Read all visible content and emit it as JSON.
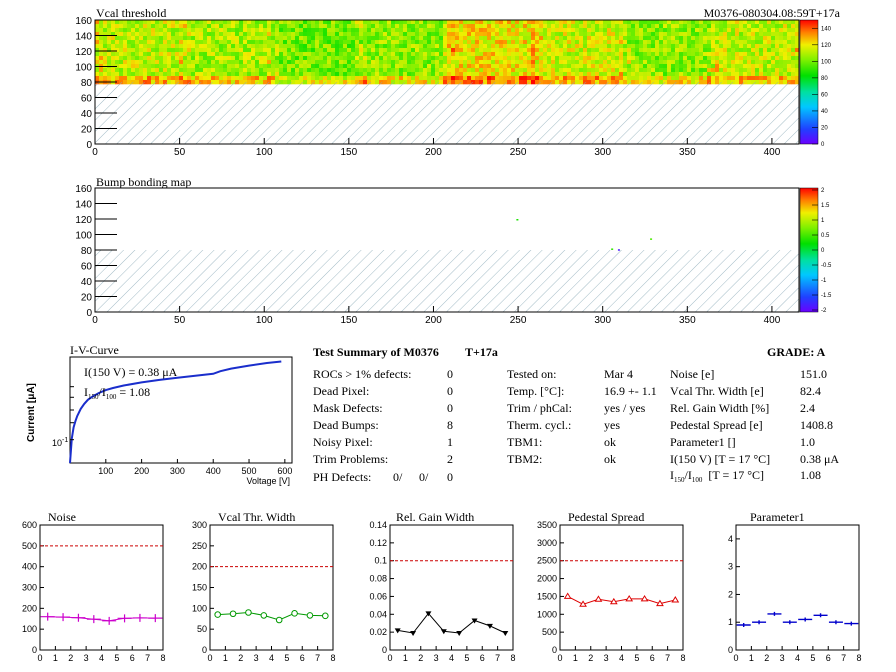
{
  "header": {
    "module_id": "M0376-080304.08:59T+17a"
  },
  "colors": {
    "accent_red": "#e8000a",
    "accent_blue": "#0000cc",
    "noise_series": "#cc00cc",
    "vcal_series": "#009900",
    "gain_series": "#000000",
    "pedestal_series": "#dd0000",
    "param1_series": "#0000cc",
    "limit_line": "#cc0000",
    "iv_curve": "#1a2ecc"
  },
  "chart_data": [
    {
      "id": "vcal_threshold",
      "type": "heatmap",
      "title": "Vcal threshold",
      "xlim": [
        0,
        416
      ],
      "ylim": [
        0,
        160
      ],
      "xticks": [
        0,
        50,
        100,
        150,
        200,
        250,
        300,
        350,
        400
      ],
      "yticks": [
        0,
        20,
        40,
        60,
        80,
        100,
        120,
        140,
        160
      ],
      "hatched_region": {
        "y": [
          0,
          80
        ]
      },
      "colorbar": {
        "ticks": [
          0,
          20,
          40,
          60,
          80,
          100,
          120,
          140
        ],
        "range": [
          0,
          150
        ]
      },
      "roc_columns": [
        {
          "x": [
            0,
            52
          ],
          "mean": 112
        },
        {
          "x": [
            52,
            104
          ],
          "mean": 108
        },
        {
          "x": [
            104,
            156
          ],
          "mean": 100
        },
        {
          "x": [
            156,
            208
          ],
          "mean": 104
        },
        {
          "x": [
            208,
            260
          ],
          "mean": 120
        },
        {
          "x": [
            260,
            312
          ],
          "mean": 114
        },
        {
          "x": [
            312,
            364
          ],
          "mean": 104
        },
        {
          "x": [
            364,
            416
          ],
          "mean": 112
        }
      ]
    },
    {
      "id": "bump_bonding",
      "type": "heatmap",
      "title": "Bump bonding map",
      "xlim": [
        0,
        416
      ],
      "ylim": [
        0,
        160
      ],
      "xticks": [
        0,
        50,
        100,
        150,
        200,
        250,
        300,
        350,
        400
      ],
      "yticks": [
        0,
        20,
        40,
        60,
        80,
        100,
        120,
        140,
        160
      ],
      "hatched_region": {
        "y": [
          0,
          80
        ]
      },
      "colorbar": {
        "ticks": [
          "2",
          "1.5",
          "1",
          "0.5",
          "0",
          "-0.5",
          "-1",
          "-1.5",
          "-2"
        ],
        "range": [
          -2,
          2
        ]
      },
      "points": [
        {
          "x": 249,
          "y": 120,
          "z": 0.3
        },
        {
          "x": 305,
          "y": 82,
          "z": 0.4
        },
        {
          "x": 309,
          "y": 81,
          "z": -1.8
        },
        {
          "x": 328,
          "y": 95,
          "z": 0.5
        }
      ]
    },
    {
      "id": "iv_curve",
      "type": "line",
      "title": "I-V-Curve",
      "xlabel": "Voltage [V]",
      "ylabel": "Current [μA]",
      "xlim": [
        0,
        620
      ],
      "xticks": [
        100,
        200,
        300,
        400,
        500,
        600
      ],
      "yscale": "log",
      "ytick_label": "10",
      "ytick_exp": "-1",
      "ann1": "I(150 V) = 0.38 μA",
      "ann2_a": "I",
      "ann2_b": "150",
      "ann2_c": "/I",
      "ann2_d": "100",
      "ann2_e": "= 1.08",
      "x": [
        0,
        5,
        10,
        15,
        20,
        30,
        40,
        50,
        60,
        80,
        100,
        120,
        150,
        200,
        250,
        300,
        350,
        400,
        420,
        450,
        500,
        550,
        590
      ],
      "y_norm": [
        0.0,
        0.24,
        0.35,
        0.41,
        0.46,
        0.53,
        0.58,
        0.62,
        0.645,
        0.685,
        0.715,
        0.735,
        0.76,
        0.79,
        0.815,
        0.835,
        0.855,
        0.875,
        0.9,
        0.925,
        0.955,
        0.98,
        0.995
      ]
    },
    {
      "id": "noise",
      "type": "line",
      "title": "Noise",
      "xlim": [
        0,
        8
      ],
      "ylim": [
        0,
        600
      ],
      "xticks": [
        0,
        1,
        2,
        3,
        4,
        5,
        6,
        7,
        8
      ],
      "yticks": [
        0,
        100,
        200,
        300,
        400,
        500,
        600
      ],
      "limit": 500,
      "x": [
        0.5,
        1.5,
        2.5,
        3.5,
        4.5,
        5.5,
        6.5,
        7.5
      ],
      "values": [
        160,
        158,
        155,
        148,
        140,
        152,
        154,
        153
      ]
    },
    {
      "id": "vcal_thr_width",
      "type": "line",
      "title": "Vcal Thr. Width",
      "xlim": [
        0,
        8
      ],
      "ylim": [
        0,
        300
      ],
      "xticks": [
        0,
        1,
        2,
        3,
        4,
        5,
        6,
        7,
        8
      ],
      "yticks": [
        0,
        50,
        100,
        150,
        200,
        250,
        300
      ],
      "limit": 200,
      "x": [
        0.5,
        1.5,
        2.5,
        3.5,
        4.5,
        5.5,
        6.5,
        7.5
      ],
      "values": [
        85,
        87,
        90,
        83,
        72,
        88,
        83,
        82
      ]
    },
    {
      "id": "rel_gain_width",
      "type": "line",
      "title": "Rel. Gain Width",
      "xlim": [
        0,
        8
      ],
      "ylim": [
        0,
        0.14
      ],
      "xticks": [
        0,
        1,
        2,
        3,
        4,
        5,
        6,
        7,
        8
      ],
      "yticks": [
        "0",
        "0.02",
        "0.04",
        "0.06",
        "0.08",
        "0.1",
        "0.12",
        "0.14"
      ],
      "limit": 0.1,
      "x": [
        0.5,
        1.5,
        2.5,
        3.5,
        4.5,
        5.5,
        6.5,
        7.5
      ],
      "values": [
        0.022,
        0.019,
        0.041,
        0.021,
        0.019,
        0.033,
        0.027,
        0.019
      ]
    },
    {
      "id": "pedestal_spread",
      "type": "line",
      "title": "Pedestal Spread",
      "xlim": [
        0,
        8
      ],
      "ylim": [
        0,
        3500
      ],
      "xticks": [
        0,
        1,
        2,
        3,
        4,
        5,
        6,
        7,
        8
      ],
      "yticks": [
        0,
        500,
        1000,
        1500,
        2000,
        2500,
        3000,
        3500
      ],
      "limit": 2500,
      "x": [
        0.5,
        1.5,
        2.5,
        3.5,
        4.5,
        5.5,
        6.5,
        7.5
      ],
      "values": [
        1500,
        1280,
        1420,
        1350,
        1430,
        1430,
        1300,
        1400
      ]
    },
    {
      "id": "parameter1",
      "type": "scatter",
      "title": "Parameter1",
      "xlim": [
        0,
        8
      ],
      "ylim": [
        0,
        4.5
      ],
      "xticks": [
        0,
        1,
        2,
        3,
        4,
        5,
        6,
        7,
        8
      ],
      "yticks": [
        0,
        1,
        2,
        3,
        4
      ],
      "x": [
        0.5,
        1.5,
        2.5,
        3.5,
        4.5,
        5.5,
        6.5,
        7.5
      ],
      "values": [
        0.9,
        1.0,
        1.3,
        1.0,
        1.1,
        1.25,
        1.0,
        0.95
      ]
    }
  ],
  "summary": {
    "title_a": "Test Summary of M0376",
    "title_b": "T+17a",
    "grade": "GRADE:  A",
    "col1": [
      {
        "label": "ROCs > 1% defects:",
        "value": "0"
      },
      {
        "label": "Dead Pixel:",
        "value": "0"
      },
      {
        "label": "Mask Defects:",
        "value": "0"
      },
      {
        "label": "Dead Bumps:",
        "value": "8"
      },
      {
        "label": "Noisy Pixel:",
        "value": "1"
      },
      {
        "label": "Trim Problems:",
        "value": "2"
      }
    ],
    "ph_label": "PH Defects:",
    "ph_values": [
      "0/",
      "0/",
      "0"
    ],
    "col2": [
      {
        "label": "Tested on:",
        "value": "Mar 4"
      },
      {
        "label": "Temp. [°C]:",
        "value": "16.9 +- 1.1"
      },
      {
        "label": "Trim / phCal:",
        "value": "yes / yes"
      },
      {
        "label": "Therm. cycl.:",
        "value": "yes"
      },
      {
        "label": "TBM1:",
        "value": "ok"
      },
      {
        "label": "TBM2:",
        "value": "ok"
      }
    ],
    "col3": [
      {
        "label": "Noise [e]",
        "value": "151.0"
      },
      {
        "label": "Vcal Thr. Width [e]",
        "value": "82.4"
      },
      {
        "label": "Rel. Gain Width [%]",
        "value": "2.4"
      },
      {
        "label": "Pedestal Spread [e]",
        "value": "1408.8"
      },
      {
        "label": "Parameter1 []",
        "value": "1.0"
      },
      {
        "label": "I(150 V) [T = 17 °C]",
        "value": "0.38 μA"
      }
    ],
    "ratio_row": {
      "a": "I",
      "b": "150",
      "c": "/I",
      "d": "100",
      "e": "[T = 17 °C]",
      "value": "1.08"
    }
  }
}
